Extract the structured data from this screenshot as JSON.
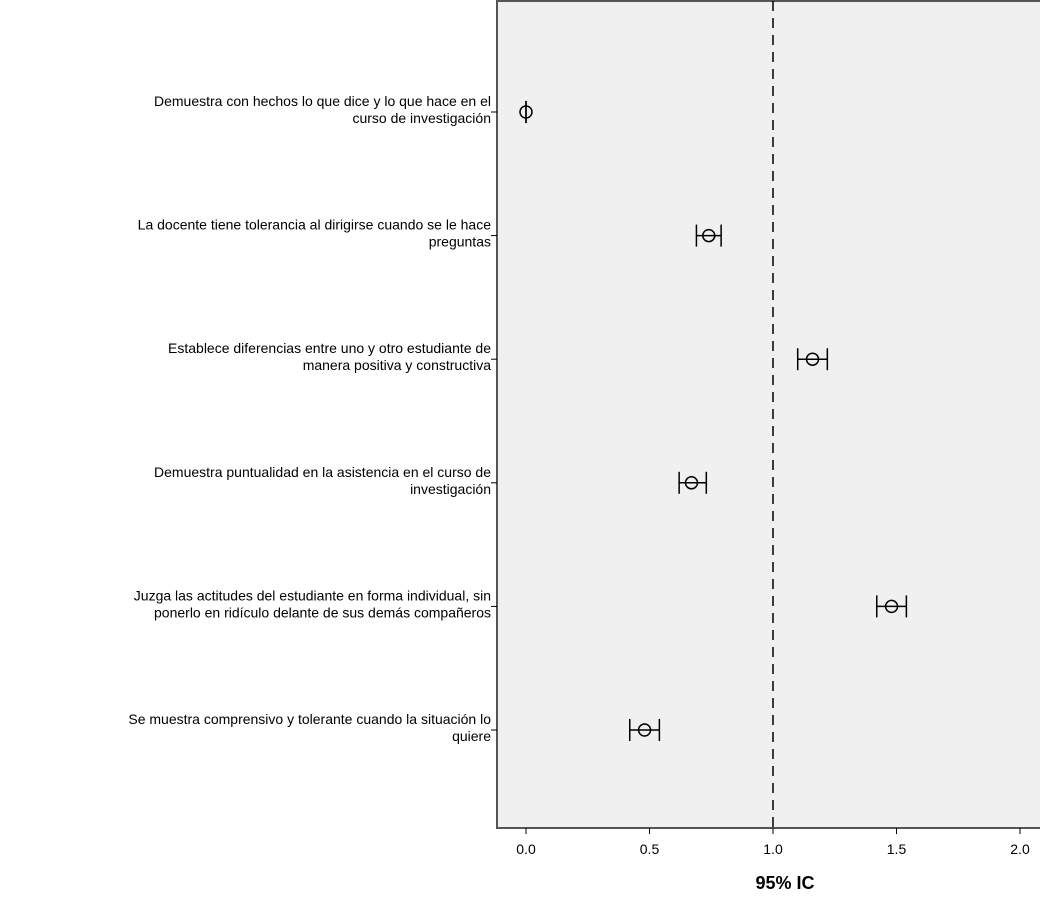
{
  "chart_data": {
    "type": "scatter",
    "subtype": "error-bar",
    "title": "",
    "xlabel": "95% IC",
    "ylabel": "",
    "xlim": [
      -0.1,
      2.1
    ],
    "xticks": [
      0.0,
      0.5,
      1.0,
      1.5,
      2.0
    ],
    "tick_labels": [
      "0.0",
      "0.5",
      "1.0",
      "1.5",
      "2.0"
    ],
    "reference_line": 1.0,
    "reference_line_style": "dashed",
    "background_color": "#f0f0f0",
    "grid": false,
    "legend": false,
    "items": [
      {
        "label_lines": [
          "Demuestra con hechos lo que dice y lo que hace en el",
          "curso de investigación"
        ],
        "mean": 0.0,
        "lower": 0.0,
        "upper": 0.0
      },
      {
        "label_lines": [
          "La docente tiene tolerancia al dirigirse cuando se le hace",
          "preguntas"
        ],
        "mean": 0.74,
        "lower": 0.69,
        "upper": 0.79
      },
      {
        "label_lines": [
          "Establece diferencias entre uno y otro estudiante de",
          "manera positiva y constructiva"
        ],
        "mean": 1.16,
        "lower": 1.1,
        "upper": 1.22
      },
      {
        "label_lines": [
          "Demuestra puntualidad en la asistencia en el curso de",
          "investigación"
        ],
        "mean": 0.67,
        "lower": 0.62,
        "upper": 0.73
      },
      {
        "label_lines": [
          "Juzga  las actitudes del estudiante en forma individual, sin",
          "ponerlo en ridículo delante de sus demás compañeros"
        ],
        "mean": 1.48,
        "lower": 1.42,
        "upper": 1.54
      },
      {
        "label_lines": [
          "Se muestra comprensivo y tolerante cuando la situación lo",
          "quiere"
        ],
        "mean": 0.48,
        "lower": 0.42,
        "upper": 0.54
      }
    ]
  }
}
